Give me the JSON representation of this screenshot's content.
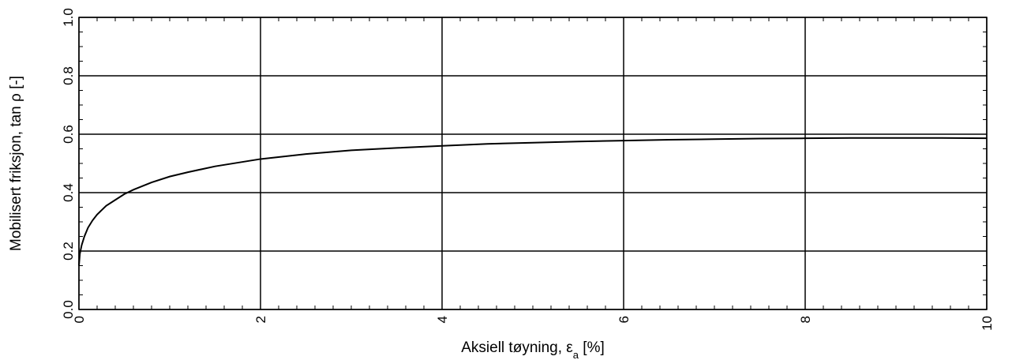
{
  "chart_data": {
    "type": "line",
    "title": "",
    "xlabel": {
      "prefix": "Aksiell tøyning, ",
      "symbol": "ε",
      "subscript": "a",
      "suffix": " [%]"
    },
    "ylabel": "Mobilisert friksjon, tan ρ  [-]",
    "xlim": [
      0,
      10
    ],
    "ylim": [
      0,
      1
    ],
    "grid": true,
    "x_ticks": [
      0,
      2,
      4,
      6,
      8,
      10
    ],
    "x_tick_labels": [
      "0",
      "2",
      "4",
      "6",
      "8",
      "10"
    ],
    "y_ticks": [
      0.0,
      0.2,
      0.4,
      0.6,
      0.8,
      1.0
    ],
    "y_tick_labels": [
      "0.0",
      "0.2",
      "0.4",
      "0.6",
      "0.8",
      "1.0"
    ],
    "series": [
      {
        "x": [
          0.0,
          0.01,
          0.03,
          0.06,
          0.1,
          0.15,
          0.2,
          0.3,
          0.4,
          0.5,
          0.6,
          0.8,
          1.0,
          1.2,
          1.5,
          2.0,
          2.5,
          3.0,
          3.5,
          4.0,
          4.5,
          5.0,
          5.5,
          6.0,
          6.5,
          7.0,
          7.5,
          8.0,
          8.5,
          9.0,
          9.5,
          10.0
        ],
        "y": [
          0.15,
          0.19,
          0.22,
          0.25,
          0.28,
          0.305,
          0.325,
          0.355,
          0.375,
          0.395,
          0.41,
          0.435,
          0.455,
          0.47,
          0.49,
          0.515,
          0.532,
          0.545,
          0.553,
          0.56,
          0.567,
          0.571,
          0.575,
          0.578,
          0.581,
          0.583,
          0.585,
          0.586,
          0.587,
          0.587,
          0.587,
          0.586
        ]
      }
    ]
  },
  "colors": {
    "line": "#000000",
    "grid": "#000000",
    "background": "#ffffff"
  }
}
